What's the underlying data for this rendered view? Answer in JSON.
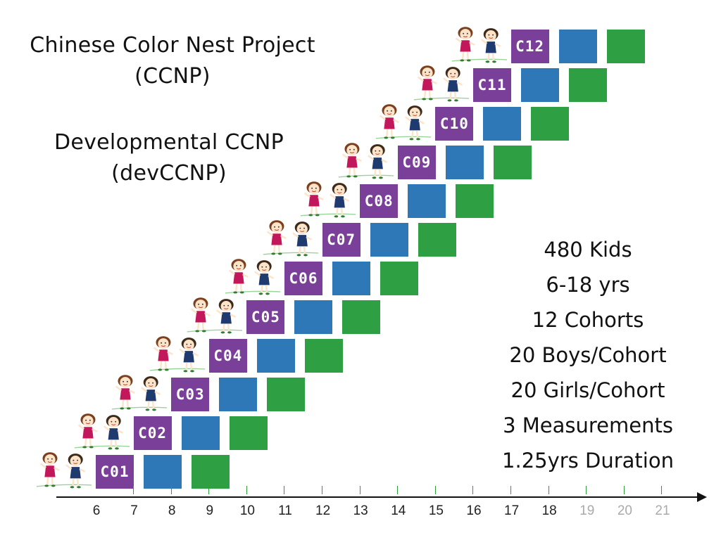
{
  "title": {
    "line1": "Chinese Color Nest Project",
    "line2": "(CCNP)",
    "line3": "Developmental CCNP",
    "line4": "(devCCNP)"
  },
  "stats": [
    "480 Kids",
    "6-18 yrs",
    "12 Cohorts",
    "20 Boys/Cohort",
    "20 Girls/Cohort",
    "3 Measurements",
    "1.25yrs Duration"
  ],
  "colors": {
    "cohort": "#7a3f98",
    "wave2": "#2f78b8",
    "wave3": "#2ea043"
  },
  "cohorts": [
    "C01",
    "C02",
    "C03",
    "C04",
    "C05",
    "C06",
    "C07",
    "C08",
    "C09",
    "C10",
    "C11",
    "C12"
  ],
  "axis": {
    "ticks": [
      "6",
      "7",
      "8",
      "9",
      "10",
      "11",
      "12",
      "13",
      "14",
      "15",
      "16",
      "17",
      "18",
      "19",
      "20",
      "21"
    ],
    "future_ticks": [
      "19",
      "20",
      "21"
    ]
  }
}
